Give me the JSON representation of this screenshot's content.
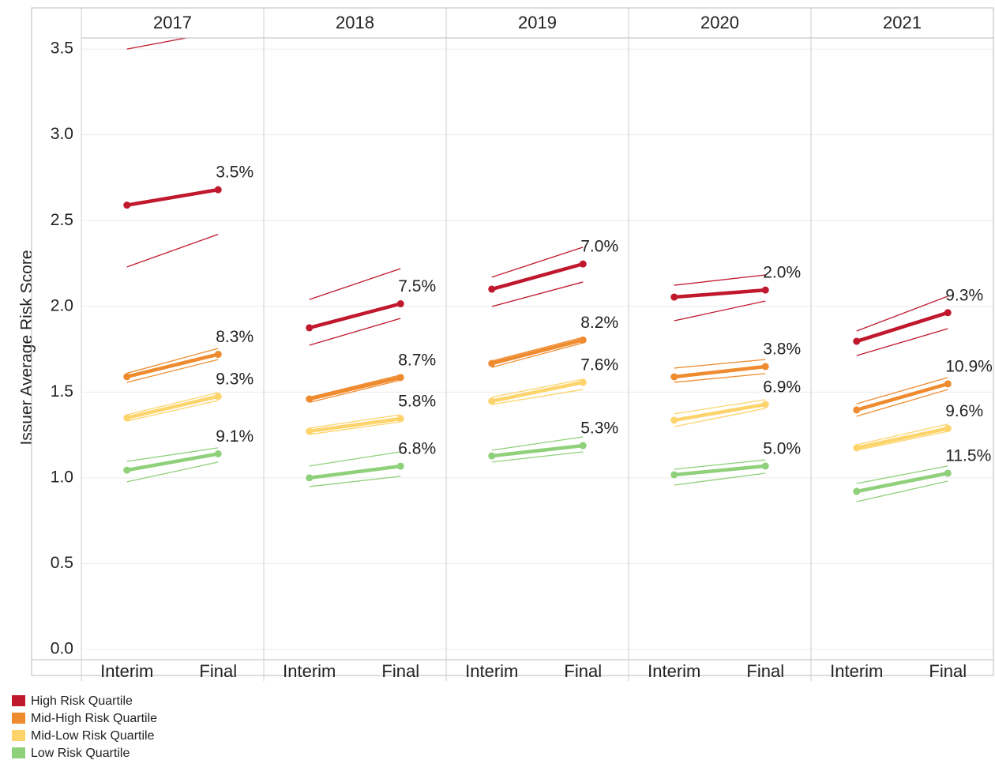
{
  "chart_data": {
    "type": "line",
    "y_label": "Issuer Average Risk Score",
    "categories": [
      "Interim",
      "Final"
    ],
    "ylim": [
      -0.06,
      3.565
    ],
    "yticks": [
      {
        "value": 0,
        "label": "0.0"
      },
      0.5,
      {
        "value": 1,
        "label": "1.0"
      },
      1.5,
      {
        "value": 2,
        "label": "2.0"
      },
      2.5,
      {
        "value": 3,
        "label": "3.0"
      },
      3.5
    ],
    "grid": true,
    "legend": "bottom-left",
    "series": [
      {
        "name": "High Risk Quartile",
        "color": "#c0182d"
      },
      {
        "name": "Mid-High Risk Quartile",
        "color": "#ef8b2f"
      },
      {
        "name": "Mid-Low Risk Quartile",
        "color": "#fdd46c"
      },
      {
        "name": "Low Risk Quartile",
        "color": "#8fd07a"
      }
    ],
    "panels": [
      {
        "title": "2017",
        "series": [
          {
            "values": [
              2.59,
              2.68
            ],
            "upper": [
              3.5,
              3.6
            ],
            "lower": [
              2.23,
              2.42
            ],
            "change_label": "3.5%"
          },
          {
            "values": [
              1.59,
              1.72
            ],
            "upper": [
              1.61,
              1.755
            ],
            "lower": [
              1.557,
              1.69
            ],
            "change_label": "8.3%"
          },
          {
            "values": [
              1.35,
              1.475
            ],
            "upper": [
              1.368,
              1.497
            ],
            "lower": [
              1.331,
              1.451
            ],
            "change_label": "9.3%"
          },
          {
            "values": [
              1.045,
              1.14
            ],
            "upper": [
              1.096,
              1.175
            ],
            "lower": [
              0.977,
              1.092
            ],
            "change_label": "9.1%"
          }
        ]
      },
      {
        "title": "2018",
        "series": [
          {
            "values": [
              1.875,
              2.015
            ],
            "upper": [
              2.04,
              2.22
            ],
            "lower": [
              1.773,
              1.93
            ],
            "change_label": "7.5%"
          },
          {
            "values": [
              1.46,
              1.585
            ],
            "upper": [
              1.47,
              1.6
            ],
            "lower": [
              1.44,
              1.57
            ],
            "change_label": "8.7%"
          },
          {
            "values": [
              1.272,
              1.345
            ],
            "upper": [
              1.29,
              1.368
            ],
            "lower": [
              1.253,
              1.327
            ],
            "change_label": "5.8%"
          },
          {
            "values": [
              1.0,
              1.068
            ],
            "upper": [
              1.069,
              1.152
            ],
            "lower": [
              0.949,
              1.009
            ],
            "change_label": "6.8%"
          }
        ]
      },
      {
        "title": "2019",
        "series": [
          {
            "values": [
              2.1,
              2.247
            ],
            "upper": [
              2.17,
              2.345
            ],
            "lower": [
              1.999,
              2.142
            ],
            "change_label": "7.0%"
          },
          {
            "values": [
              1.667,
              1.804
            ],
            "upper": [
              1.681,
              1.819
            ],
            "lower": [
              1.644,
              1.787
            ],
            "change_label": "8.2%"
          },
          {
            "values": [
              1.447,
              1.557
            ],
            "upper": [
              1.47,
              1.575
            ],
            "lower": [
              1.428,
              1.515
            ],
            "change_label": "7.6%"
          },
          {
            "values": [
              1.128,
              1.188
            ],
            "upper": [
              1.161,
              1.239
            ],
            "lower": [
              1.092,
              1.152
            ],
            "change_label": "5.3%"
          }
        ]
      },
      {
        "title": "2020",
        "series": [
          {
            "values": [
              2.054,
              2.095
            ],
            "upper": [
              2.123,
              2.183
            ],
            "lower": [
              1.916,
              2.031
            ],
            "change_label": "2.0%"
          },
          {
            "values": [
              1.589,
              1.649
            ],
            "upper": [
              1.64,
              1.69
            ],
            "lower": [
              1.557,
              1.608
            ],
            "change_label": "3.8%"
          },
          {
            "values": [
              1.336,
              1.428
            ],
            "upper": [
              1.373,
              1.456
            ],
            "lower": [
              1.299,
              1.405
            ],
            "change_label": "6.9%"
          },
          {
            "values": [
              1.018,
              1.069
            ],
            "upper": [
              1.05,
              1.105
            ],
            "lower": [
              0.958,
              1.027
            ],
            "change_label": "5.0%"
          }
        ]
      },
      {
        "title": "2021",
        "series": [
          {
            "values": [
              1.796,
              1.963
            ],
            "upper": [
              1.856,
              2.059
            ],
            "lower": [
              1.713,
              1.87
            ],
            "change_label": "9.3%"
          },
          {
            "values": [
              1.396,
              1.548
            ],
            "upper": [
              1.432,
              1.585
            ],
            "lower": [
              1.359,
              1.515
            ],
            "change_label": "10.9%"
          },
          {
            "values": [
              1.175,
              1.288
            ],
            "upper": [
              1.193,
              1.313
            ],
            "lower": [
              1.161,
              1.271
            ],
            "change_label": "9.6%"
          },
          {
            "values": [
              0.921,
              1.027
            ],
            "upper": [
              0.967,
              1.069
            ],
            "lower": [
              0.861,
              0.981
            ],
            "change_label": "11.5%"
          }
        ]
      }
    ]
  }
}
